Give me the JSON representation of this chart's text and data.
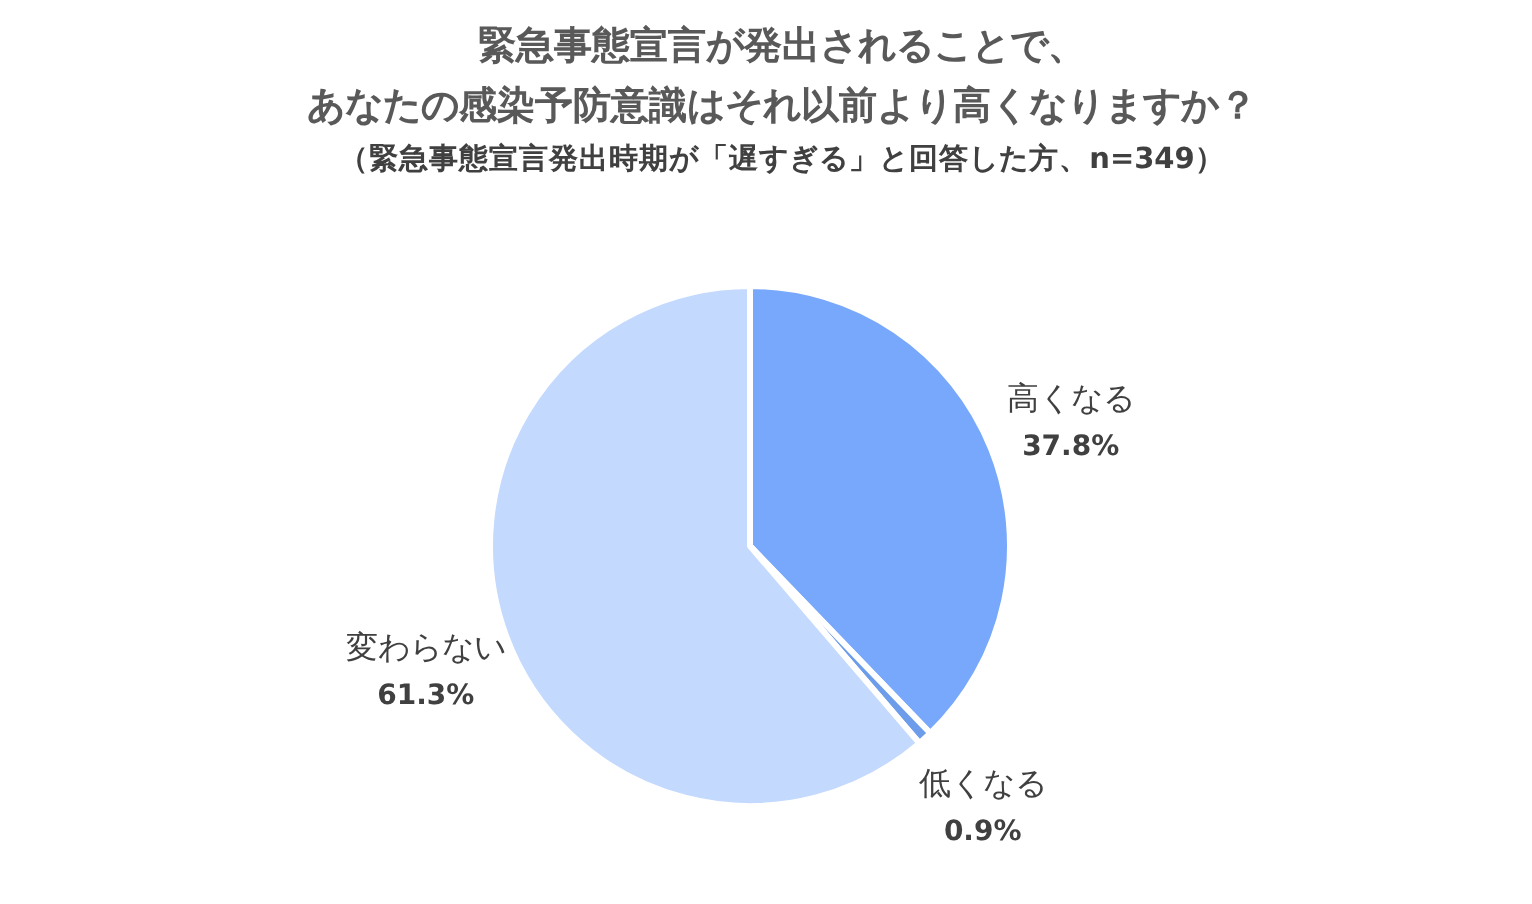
{
  "chart_data": {
    "type": "pie",
    "title": "緊急事態宣言が発出されることで、あなたの感染予防意識はそれ以前より高くなりますか？",
    "subtitle": "（緊急事態宣言発出時期が「遅すぎる」と回答した方、n=349）",
    "categories": [
      "高くなる",
      "低くなる",
      "変わらない"
    ],
    "values": [
      37.8,
      0.9,
      61.3
    ],
    "value_labels": [
      "37.8%",
      "0.9%",
      "61.3%"
    ],
    "colors": [
      "#78a8fc",
      "#6c9cea",
      "#c3d9fe"
    ]
  }
}
